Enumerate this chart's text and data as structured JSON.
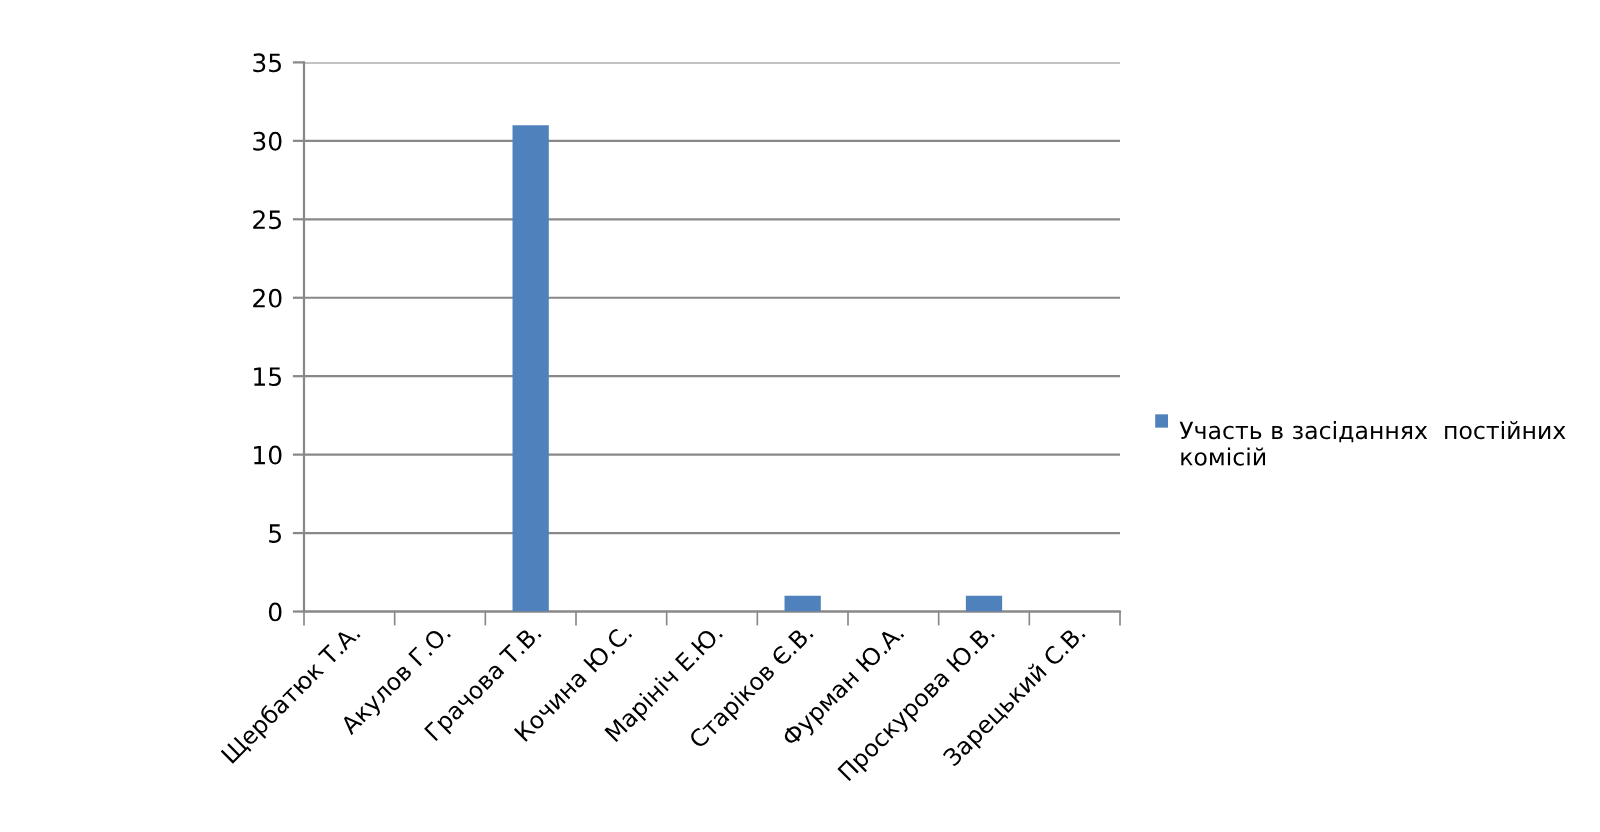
{
  "chart_data": {
    "type": "bar",
    "categories": [
      "Щербатюк Т.А.",
      "Акулов Г.О.",
      "Грачова Т.В.",
      "Кочина Ю.С.",
      "Марініч Е.Ю.",
      "Старіков Є.В.",
      "Фурман Ю.А.",
      "Проскурова Ю.В.",
      "Зарецький С.В."
    ],
    "series": [
      {
        "name": "Участь в засіданнях  постійних комісій",
        "color": "#4f81bd",
        "values": [
          0,
          0,
          31,
          0,
          0,
          1,
          0,
          1,
          0
        ]
      }
    ],
    "ylim": [
      0,
      35
    ],
    "yticks": [
      0,
      5,
      10,
      15,
      20,
      25,
      30,
      35
    ],
    "grid": "y",
    "legend": "right"
  }
}
